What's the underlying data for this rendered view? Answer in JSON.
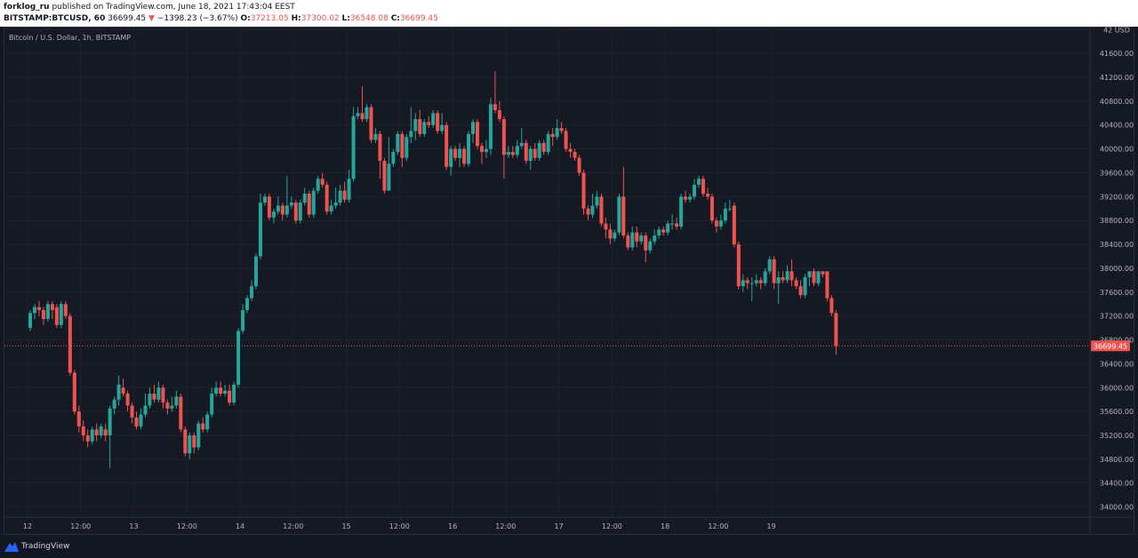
{
  "header": {
    "publisher": "forklog_ru",
    "published_text": "published on TradingView.com, June 18, 2021 17:43:04 EEST",
    "symbol": "BITSTAMP:BTCUSD, 60",
    "price": "36699.45",
    "down_arrow": "▼",
    "change": "−1398.23 (−3.67%)",
    "o_label": "O:",
    "o_val": "37213.05",
    "h_label": "H:",
    "h_val": "37300.02",
    "l_label": "L:",
    "l_val": "36548.08",
    "c_label": "C:",
    "c_val": "36699.45"
  },
  "chart_legend": "Bitcoin / U.S. Dollar, 1h, BITSTAMP",
  "footer": {
    "brand": "TradingView",
    "logo_icon": "tradingview-logo-icon"
  },
  "colors": {
    "up": "#26a69a",
    "down": "#ef5350",
    "bg": "#131722",
    "grid": "#1e222d",
    "text": "#b2b5be"
  },
  "chart_data": {
    "type": "candlestick",
    "title": "Bitcoin / U.S. Dollar, 1h, BITSTAMP",
    "ylim": [
      34000,
      42000
    ],
    "y_ticks": [
      "42 USD",
      "41600.00",
      "41200.00",
      "40800.00",
      "40400.00",
      "40000.00",
      "39600.00",
      "39200.00",
      "38800.00",
      "38400.00",
      "38000.00",
      "37600.00",
      "37200.00",
      "36800.00",
      "36400.00",
      "36000.00",
      "35600.00",
      "35200.00",
      "34800.00",
      "34400.00",
      "34000.00"
    ],
    "y_tick_values": [
      42000,
      41600,
      41200,
      40800,
      40400,
      40000,
      39600,
      39200,
      38800,
      38400,
      38000,
      37600,
      37200,
      36800,
      36400,
      36000,
      35600,
      35200,
      34800,
      34400,
      34000
    ],
    "x_ticks": [
      "12",
      "12:00",
      "13",
      "12:00",
      "14",
      "12:00",
      "15",
      "12:00",
      "16",
      "12:00",
      "17",
      "12:00",
      "18",
      "12:00",
      "19"
    ],
    "x_tick_hours": [
      0,
      12,
      24,
      36,
      48,
      60,
      72,
      84,
      96,
      108,
      120,
      132,
      144,
      156,
      168
    ],
    "last_price": "36699.45",
    "last_price_value": 36699.45,
    "candles": [
      [
        37000,
        37250,
        37300,
        36950
      ],
      [
        37250,
        37350,
        37400,
        37150
      ],
      [
        37350,
        37300,
        37450,
        37200
      ],
      [
        37300,
        37150,
        37350,
        37050
      ],
      [
        37150,
        37400,
        37450,
        37100
      ],
      [
        37400,
        37300,
        37450,
        37150
      ],
      [
        37350,
        37050,
        37400,
        37000
      ],
      [
        37050,
        37400,
        37450,
        37000
      ],
      [
        37400,
        37200,
        37450,
        37150
      ],
      [
        37200,
        36250,
        37250,
        36200
      ],
      [
        36250,
        35600,
        36300,
        35550
      ],
      [
        35600,
        35350,
        35700,
        35250
      ],
      [
        35350,
        35200,
        35450,
        35100
      ],
      [
        35200,
        35100,
        35300,
        35000
      ],
      [
        35100,
        35300,
        35350,
        35050
      ],
      [
        35300,
        35200,
        35400,
        35100
      ],
      [
        35200,
        35350,
        35400,
        35150
      ],
      [
        35300,
        35200,
        35400,
        35100
      ],
      [
        35200,
        35650,
        35700,
        34650
      ],
      [
        35650,
        35800,
        35850,
        35550
      ],
      [
        35800,
        36050,
        36200,
        35700
      ],
      [
        36000,
        35900,
        36150,
        35850
      ],
      [
        35900,
        35700,
        35950,
        35600
      ],
      [
        35700,
        35500,
        35750,
        35400
      ],
      [
        35500,
        35350,
        35600,
        35300
      ],
      [
        35350,
        35550,
        35650,
        35300
      ],
      [
        35550,
        35700,
        35900,
        35500
      ],
      [
        35700,
        35900,
        36000,
        35650
      ],
      [
        35900,
        35800,
        36050,
        35750
      ],
      [
        35800,
        36000,
        36100,
        35750
      ],
      [
        36000,
        35750,
        36050,
        35650
      ],
      [
        35750,
        35650,
        35800,
        35550
      ],
      [
        35650,
        35700,
        35850,
        35600
      ],
      [
        35700,
        35850,
        35950,
        35650
      ],
      [
        35850,
        35300,
        35900,
        35250
      ],
      [
        35300,
        34900,
        35350,
        34850
      ],
      [
        34900,
        35200,
        35250,
        34800
      ],
      [
        35200,
        35000,
        35250,
        34900
      ],
      [
        35000,
        35400,
        35450,
        34950
      ],
      [
        35400,
        35300,
        35500,
        35250
      ],
      [
        35300,
        35550,
        35600,
        35250
      ],
      [
        35550,
        35900,
        36000,
        35500
      ],
      [
        35900,
        36000,
        36100,
        35850
      ],
      [
        36000,
        35900,
        36100,
        35850
      ],
      [
        35900,
        35950,
        36050,
        35850
      ],
      [
        35950,
        35750,
        36050,
        35700
      ],
      [
        35750,
        36050,
        36100,
        35700
      ],
      [
        36050,
        36950,
        37000,
        36000
      ],
      [
        36950,
        37300,
        37400,
        36900
      ],
      [
        37300,
        37500,
        37550,
        37250
      ],
      [
        37500,
        37700,
        37800,
        37450
      ],
      [
        37700,
        38200,
        38250,
        37650
      ],
      [
        38200,
        39100,
        39250,
        38150
      ],
      [
        39100,
        39200,
        39250,
        39050
      ],
      [
        39200,
        38850,
        39250,
        38800
      ],
      [
        38850,
        38950,
        39000,
        38750
      ],
      [
        38950,
        39050,
        39200,
        38900
      ],
      [
        39050,
        38900,
        39100,
        38800
      ],
      [
        38900,
        39050,
        39550,
        38850
      ],
      [
        39050,
        39100,
        39200,
        39000
      ],
      [
        39100,
        38800,
        39150,
        38750
      ],
      [
        38800,
        39100,
        39150,
        38750
      ],
      [
        39100,
        39250,
        39350,
        39050
      ],
      [
        39250,
        38900,
        39300,
        38850
      ],
      [
        38900,
        39300,
        39350,
        38850
      ],
      [
        39300,
        39500,
        39550,
        39250
      ],
      [
        39500,
        39400,
        39600,
        39350
      ],
      [
        39400,
        38950,
        39450,
        38900
      ],
      [
        38950,
        39050,
        39150,
        38900
      ],
      [
        39050,
        39100,
        39350,
        39000
      ],
      [
        39100,
        39300,
        39400,
        39050
      ],
      [
        39300,
        39150,
        39450,
        39100
      ],
      [
        39150,
        39500,
        39650,
        39100
      ],
      [
        39500,
        40550,
        40700,
        39450
      ],
      [
        40550,
        40600,
        40700,
        40500
      ],
      [
        40600,
        40500,
        41050,
        40450
      ],
      [
        40500,
        40700,
        40750,
        40450
      ],
      [
        40700,
        40150,
        40750,
        40100
      ],
      [
        40150,
        40250,
        40350,
        40100
      ],
      [
        40250,
        39800,
        40300,
        39500
      ],
      [
        39800,
        39300,
        39850,
        39250
      ],
      [
        39300,
        39750,
        40200,
        39700
      ],
      [
        39750,
        39950,
        40000,
        39700
      ],
      [
        39950,
        40250,
        40300,
        39900
      ],
      [
        40250,
        39850,
        40300,
        39700
      ],
      [
        39850,
        40200,
        40250,
        39800
      ],
      [
        40200,
        40300,
        40700,
        40100
      ],
      [
        40300,
        40500,
        40600,
        40150
      ],
      [
        40500,
        40250,
        40650,
        40200
      ],
      [
        40250,
        40450,
        40500,
        40200
      ],
      [
        40450,
        40400,
        40550,
        40350
      ],
      [
        40400,
        40600,
        40650,
        40350
      ],
      [
        40600,
        40300,
        40650,
        40250
      ],
      [
        40300,
        40400,
        40600,
        40250
      ],
      [
        40400,
        39700,
        40450,
        39650
      ],
      [
        39700,
        40000,
        40050,
        39550
      ],
      [
        40000,
        39850,
        40050,
        39800
      ],
      [
        39850,
        40000,
        40100,
        39700
      ],
      [
        40000,
        39750,
        40050,
        39700
      ],
      [
        39750,
        40250,
        40300,
        39700
      ],
      [
        40250,
        40450,
        40500,
        40100
      ],
      [
        40450,
        40050,
        40500,
        40000
      ],
      [
        40050,
        39950,
        40100,
        39750
      ],
      [
        39950,
        40000,
        40150,
        39850
      ],
      [
        40000,
        40750,
        40850,
        39900
      ],
      [
        40750,
        40650,
        41300,
        40600
      ],
      [
        40650,
        40500,
        40800,
        40450
      ],
      [
        40500,
        39900,
        40550,
        39500
      ],
      [
        39900,
        39950,
        40050,
        39850
      ],
      [
        39950,
        39900,
        40050,
        39850
      ],
      [
        39900,
        40050,
        40150,
        39850
      ],
      [
        40050,
        40100,
        40350,
        40000
      ],
      [
        40100,
        39800,
        40150,
        39750
      ],
      [
        39800,
        40000,
        40050,
        39650
      ],
      [
        40000,
        39850,
        40100,
        39800
      ],
      [
        39850,
        40100,
        40150,
        39800
      ],
      [
        40100,
        39950,
        40150,
        39900
      ],
      [
        39950,
        40250,
        40300,
        39900
      ],
      [
        40250,
        40200,
        40350,
        40050
      ],
      [
        40200,
        40350,
        40500,
        40150
      ],
      [
        40350,
        40300,
        40450,
        40250
      ],
      [
        40300,
        40000,
        40350,
        39950
      ],
      [
        40000,
        39950,
        40100,
        39850
      ],
      [
        39950,
        39850,
        40000,
        39800
      ],
      [
        39850,
        39600,
        39900,
        39550
      ],
      [
        39600,
        39000,
        39650,
        38900
      ],
      [
        39000,
        38900,
        39050,
        38800
      ],
      [
        38900,
        39050,
        39250,
        38850
      ],
      [
        39050,
        39200,
        39300,
        39000
      ],
      [
        39200,
        38750,
        39250,
        38700
      ],
      [
        38750,
        38650,
        38850,
        38500
      ],
      [
        38650,
        38500,
        38750,
        38400
      ],
      [
        38500,
        38600,
        38650,
        38450
      ],
      [
        38600,
        39200,
        39250,
        38550
      ],
      [
        39200,
        38550,
        39700,
        38500
      ],
      [
        38550,
        38350,
        38600,
        38300
      ],
      [
        38350,
        38600,
        38700,
        38300
      ],
      [
        38600,
        38450,
        38700,
        38350
      ],
      [
        38450,
        38550,
        38600,
        38400
      ],
      [
        38550,
        38300,
        38600,
        38100
      ],
      [
        38300,
        38450,
        38500,
        38250
      ],
      [
        38450,
        38550,
        38650,
        38400
      ],
      [
        38550,
        38650,
        38700,
        38500
      ],
      [
        38650,
        38600,
        38700,
        38550
      ],
      [
        38600,
        38750,
        38800,
        38550
      ],
      [
        38750,
        38750,
        38900,
        38650
      ],
      [
        38750,
        38700,
        38850,
        38650
      ],
      [
        38700,
        39200,
        39250,
        38650
      ],
      [
        39200,
        39150,
        39300,
        39100
      ],
      [
        39150,
        39200,
        39250,
        39100
      ],
      [
        39200,
        39400,
        39500,
        39150
      ],
      [
        39400,
        39500,
        39550,
        39350
      ],
      [
        39500,
        39250,
        39550,
        39200
      ],
      [
        39250,
        39200,
        39350,
        39150
      ],
      [
        39200,
        38800,
        39250,
        38750
      ],
      [
        38800,
        38700,
        38850,
        38600
      ],
      [
        38700,
        38800,
        38900,
        38650
      ],
      [
        38800,
        39000,
        39100,
        38750
      ],
      [
        39000,
        39000,
        39150,
        38950
      ],
      [
        39050,
        38400,
        39100,
        38350
      ],
      [
        38400,
        37700,
        38450,
        37650
      ],
      [
        37700,
        37800,
        37900,
        37600
      ],
      [
        37800,
        37750,
        37850,
        37650
      ],
      [
        37750,
        37750,
        37850,
        37450
      ],
      [
        37750,
        37800,
        37900,
        37700
      ],
      [
        37800,
        37750,
        37850,
        37650
      ],
      [
        37750,
        37950,
        38000,
        37700
      ],
      [
        37950,
        38150,
        38200,
        37900
      ],
      [
        38150,
        37750,
        38200,
        37650
      ],
      [
        37750,
        37850,
        37950,
        37400
      ],
      [
        37850,
        37800,
        37950,
        37750
      ],
      [
        37800,
        37950,
        38050,
        37750
      ],
      [
        37950,
        37800,
        38150,
        37700
      ],
      [
        37800,
        37700,
        37850,
        37650
      ],
      [
        37700,
        37550,
        37800,
        37500
      ],
      [
        37550,
        37850,
        37900,
        37500
      ],
      [
        37850,
        37950,
        37950,
        37700
      ],
      [
        37950,
        37750,
        38000,
        37700
      ],
      [
        37750,
        37950,
        37950,
        37700
      ],
      [
        37950,
        37900,
        37950,
        37850
      ],
      [
        37950,
        37500,
        37950,
        37450
      ],
      [
        37500,
        37250,
        37550,
        37200
      ],
      [
        37250,
        36700,
        37300,
        36550
      ]
    ]
  }
}
